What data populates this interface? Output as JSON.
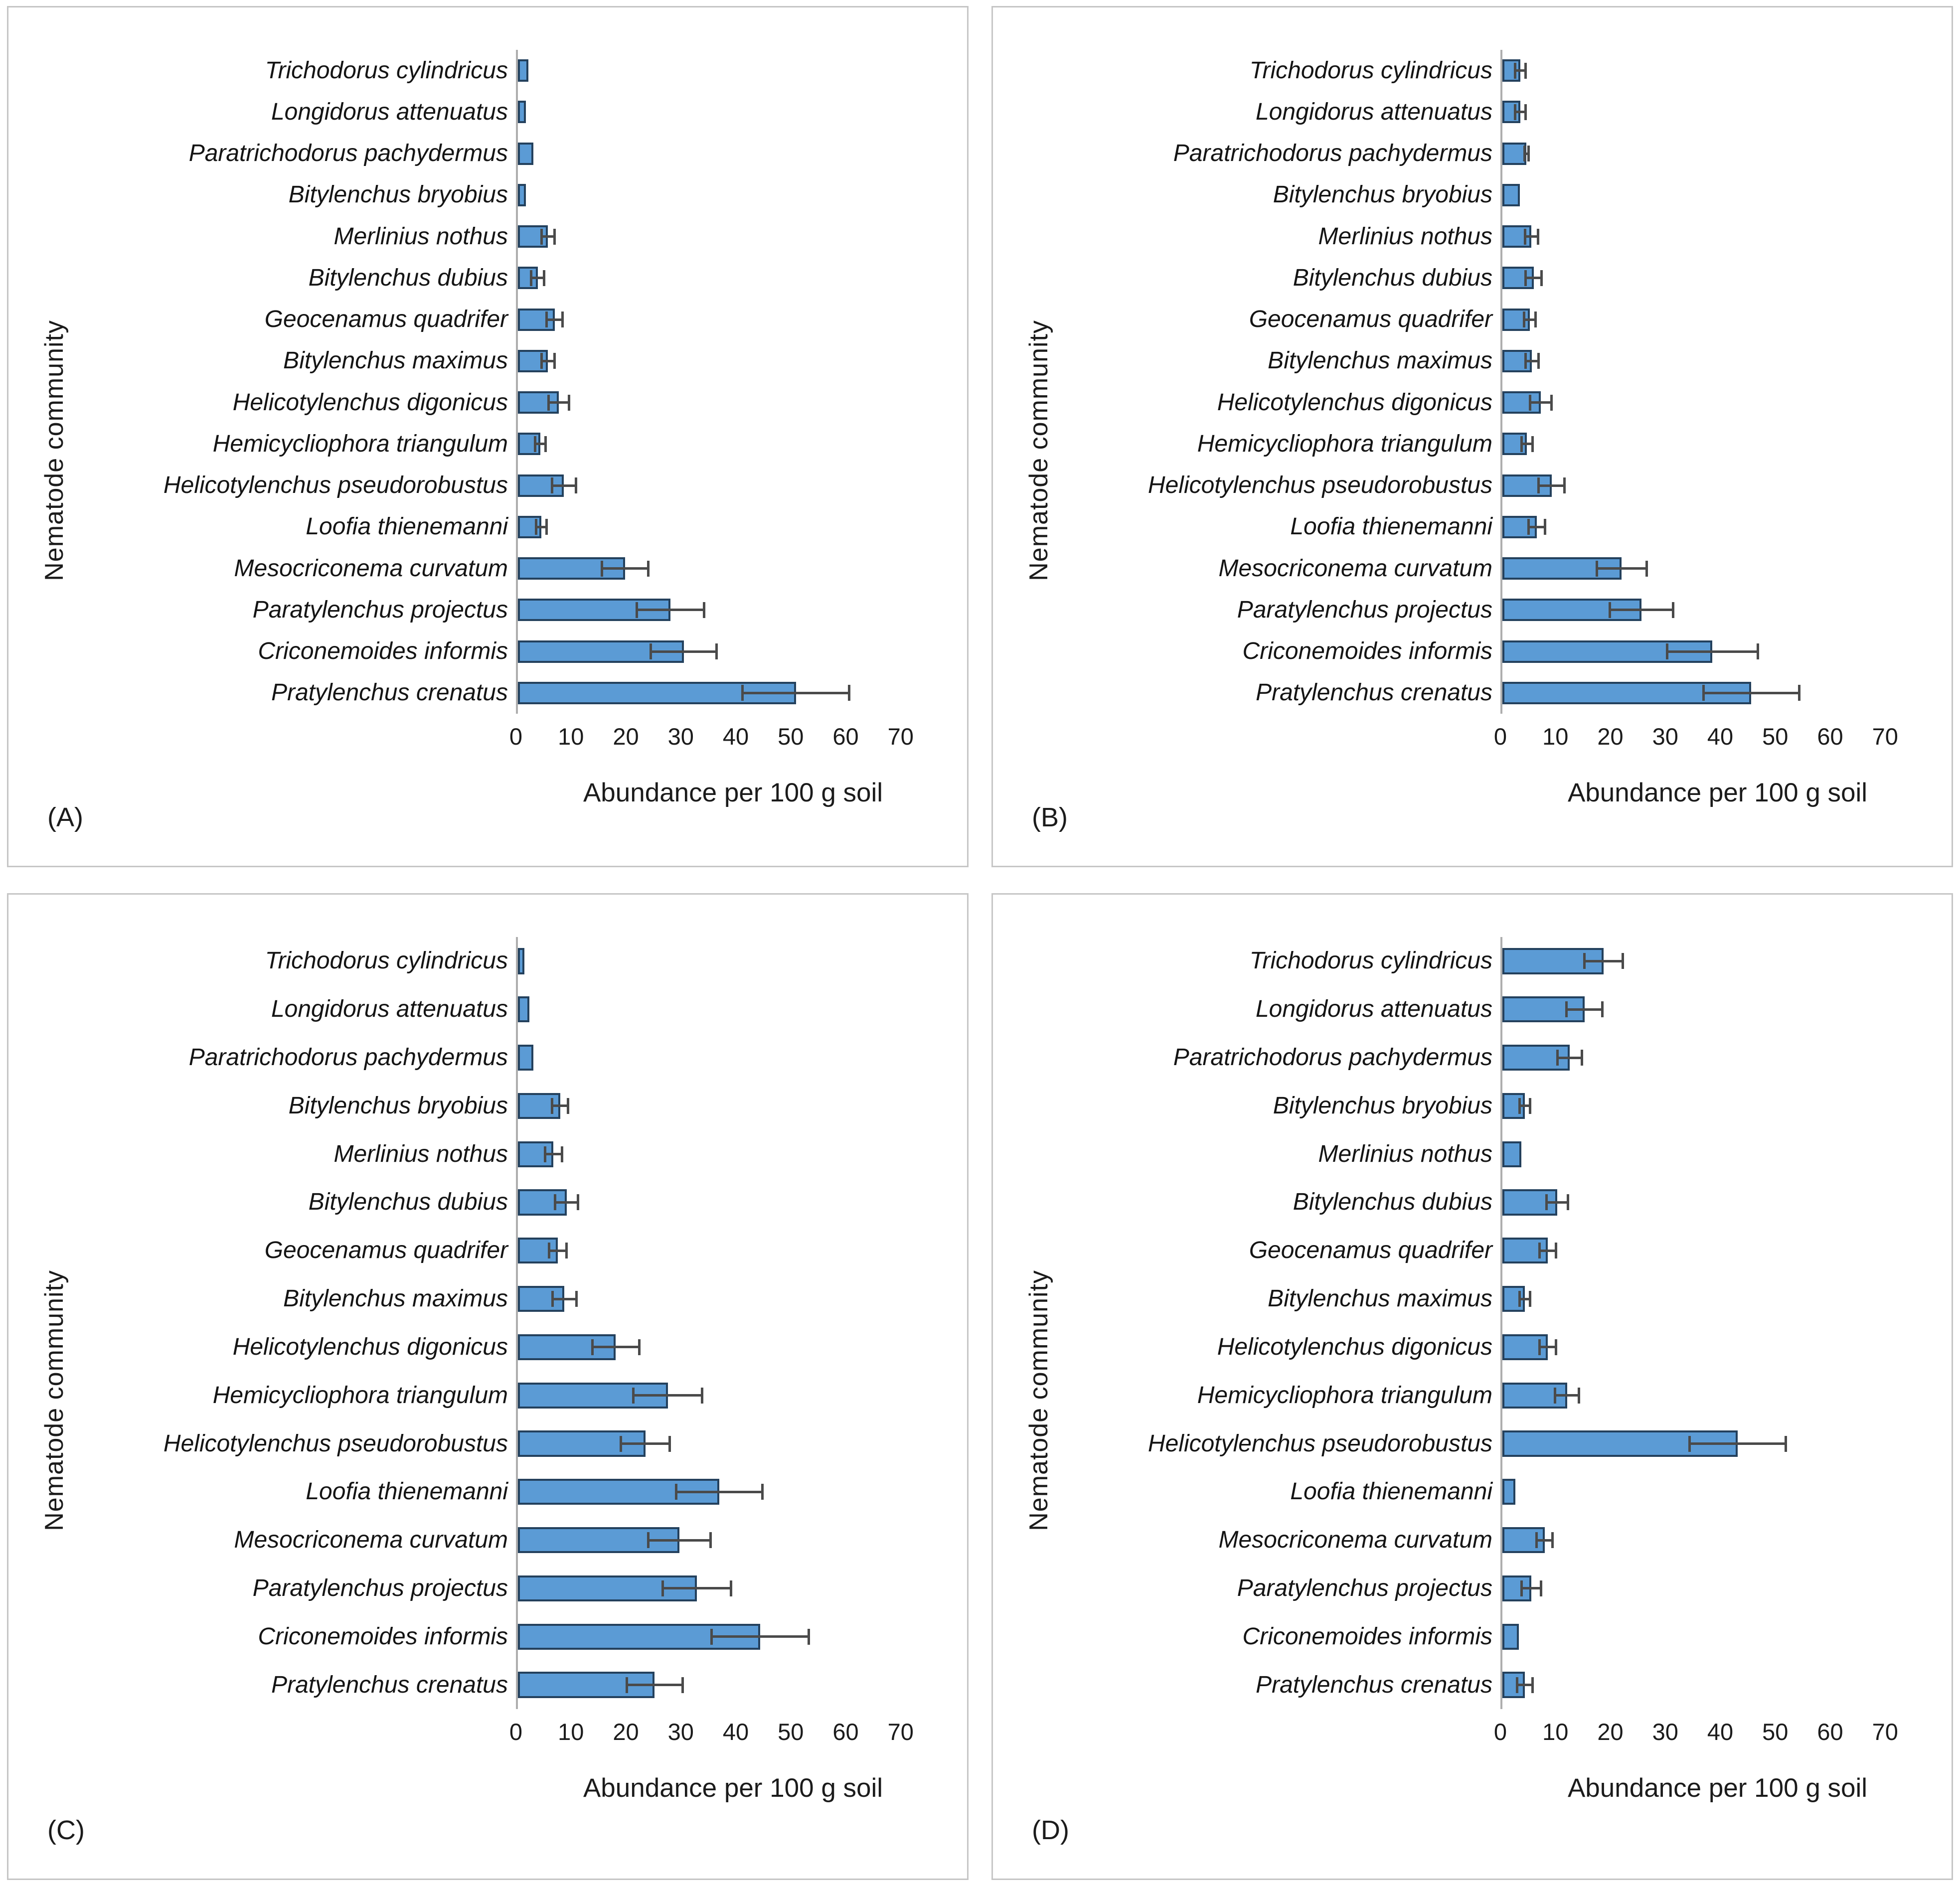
{
  "figure": {
    "bar_fill": "#5b9bd5",
    "bar_border": "#24415d",
    "error_color": "#4a4a4a",
    "axis_line_color": "#aeaeae",
    "panel_border_color": "#c6c6c6"
  },
  "chart_data": [
    {
      "type": "bar",
      "orientation": "horizontal",
      "panel_label": "(A)",
      "xlabel": "Abundance per 100 g soil",
      "ylabel": "Nematode community",
      "xlim": [
        0,
        79
      ],
      "x_ticks": [
        0,
        10,
        20,
        30,
        40,
        50,
        60,
        70
      ],
      "categories": [
        "Trichodorus cylindricus",
        "Longidorus attenuatus",
        "Paratrichodorus pachydermus",
        "Bitylenchus bryobius",
        "Merlinius nothus",
        "Bitylenchus dubius",
        "Geocenamus quadrifer",
        "Bitylenchus maximus",
        "Helicotylenchus digonicus",
        "Hemicycliophora triangulum",
        "Helicotylenchus pseudorobustus",
        "Loofia thienemanni",
        "Mesocriconema curvatum",
        "Paratylenchus projectus",
        "Criconemoides informis",
        "Pratylenchus crenatus"
      ],
      "values": [
        1.9,
        1.5,
        2.8,
        1.5,
        5.5,
        3.6,
        6.7,
        5.5,
        7.5,
        4.1,
        8.4,
        4.3,
        19.6,
        27.9,
        30.3,
        50.8
      ],
      "errors": [
        0,
        0,
        0,
        0,
        1.4,
        1.4,
        1.7,
        1.4,
        2.1,
        1.2,
        2.4,
        1.2,
        4.5,
        6.4,
        6.2,
        10.0
      ]
    },
    {
      "type": "bar",
      "orientation": "horizontal",
      "panel_label": "(B)",
      "xlabel": "Abundance per 100 g soil",
      "ylabel": "Nematode community",
      "xlim": [
        0,
        79
      ],
      "x_ticks": [
        0,
        10,
        20,
        30,
        40,
        50,
        60,
        70
      ],
      "categories": [
        "Trichodorus cylindricus",
        "Longidorus attenuatus",
        "Paratrichodorus pachydermus",
        "Bitylenchus bryobius",
        "Merlinius nothus",
        "Bitylenchus dubius",
        "Geocenamus quadrifer",
        "Bitylenchus maximus",
        "Helicotylenchus digonicus",
        "Hemicycliophora triangulum",
        "Helicotylenchus pseudorobustus",
        "Loofia thienemanni",
        "Mesocriconema curvatum",
        "Paratylenchus projectus",
        "Criconemoides informis",
        "Pratylenchus crenatus"
      ],
      "values": [
        3.3,
        3.3,
        4.4,
        3.2,
        5.3,
        5.7,
        5.0,
        5.4,
        7.0,
        4.5,
        9.0,
        6.3,
        21.8,
        25.4,
        38.4,
        45.5
      ],
      "errors": [
        1.2,
        1.2,
        0.6,
        0,
        1.4,
        1.7,
        1.3,
        1.4,
        2.2,
        1.2,
        2.6,
        1.7,
        4.8,
        6.0,
        8.5,
        9.0
      ]
    },
    {
      "type": "bar",
      "orientation": "horizontal",
      "panel_label": "(C)",
      "xlabel": "Abundance per 100 g soil",
      "ylabel": "Nematode community",
      "xlim": [
        0,
        79
      ],
      "x_ticks": [
        0,
        10,
        20,
        30,
        40,
        50,
        60,
        70
      ],
      "categories": [
        "Trichodorus cylindricus",
        "Longidorus attenuatus",
        "Paratrichodorus pachydermus",
        "Bitylenchus bryobius",
        "Merlinius nothus",
        "Bitylenchus dubius",
        "Geocenamus quadrifer",
        "Bitylenchus maximus",
        "Helicotylenchus digonicus",
        "Hemicycliophora triangulum",
        "Helicotylenchus pseudorobustus",
        "Loofia thienemanni",
        "Mesocriconema curvatum",
        "Paratylenchus projectus",
        "Criconemoides informis",
        "Pratylenchus crenatus"
      ],
      "values": [
        1.2,
        2.1,
        2.8,
        7.7,
        6.5,
        8.9,
        7.3,
        8.5,
        17.9,
        27.4,
        23.3,
        36.8,
        29.5,
        32.7,
        44.3,
        25.0
      ],
      "errors": [
        0,
        0,
        0,
        1.7,
        1.8,
        2.3,
        1.8,
        2.4,
        4.5,
        6.5,
        4.7,
        8.1,
        5.9,
        6.5,
        9.1,
        5.3
      ]
    },
    {
      "type": "bar",
      "orientation": "horizontal",
      "panel_label": "(D)",
      "xlabel": "Abundance per 100 g soil",
      "ylabel": "Nematode community",
      "xlim": [
        0,
        79
      ],
      "x_ticks": [
        0,
        10,
        20,
        30,
        40,
        50,
        60,
        70
      ],
      "categories": [
        "Trichodorus cylindricus",
        "Longidorus attenuatus",
        "Paratrichodorus pachydermus",
        "Bitylenchus bryobius",
        "Merlinius nothus",
        "Bitylenchus dubius",
        "Geocenamus quadrifer",
        "Bitylenchus maximus",
        "Helicotylenchus digonicus",
        "Hemicycliophora triangulum",
        "Helicotylenchus pseudorobustus",
        "Loofia thienemanni",
        "Mesocriconema curvatum",
        "Paratylenchus projectus",
        "Criconemoides informis",
        "Pratylenchus crenatus"
      ],
      "values": [
        18.5,
        15.0,
        12.3,
        4.1,
        3.5,
        10.0,
        8.3,
        4.1,
        8.3,
        11.8,
        43.0,
        2.4,
        7.7,
        5.3,
        3.0,
        4.1
      ],
      "errors": [
        3.7,
        3.5,
        2.5,
        1.2,
        0,
        2.2,
        1.7,
        1.2,
        1.7,
        2.4,
        9.0,
        0,
        1.7,
        2.0,
        0,
        1.6
      ]
    }
  ]
}
